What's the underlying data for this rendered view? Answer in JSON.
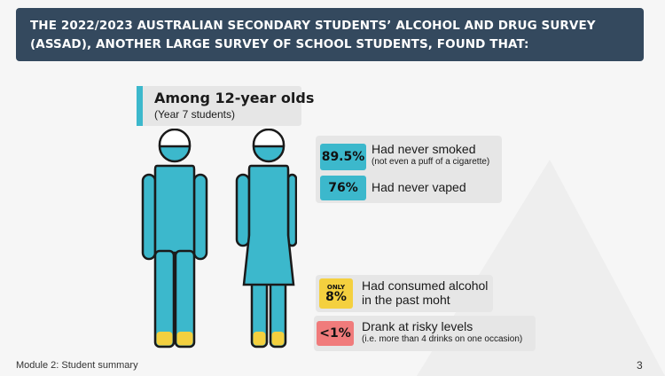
{
  "banner": {
    "line1": "THE 2022/2023 AUSTRALIAN SECONDARY STUDENTS’ ALCOHOL AND DRUG SURVEY",
    "line2": "(ASSAD), ANOTHER LARGE SURVEY OF SCHOOL STUDENTS, FOUND THAT:"
  },
  "heading": {
    "main": "Among 12-year olds",
    "sub": "(Year 7 students)"
  },
  "stats": [
    {
      "value": "89.5%",
      "label": "Had never smoked",
      "note": "(not even a puff of a cigarette)"
    },
    {
      "value": "76%",
      "label": "Had never vaped"
    },
    {
      "value_prefix": "ONLY",
      "value": "8%",
      "label_line1": "Had consumed alcohol",
      "label_line2": "in the past moht"
    },
    {
      "value": "<1%",
      "label": "Drank at risky levels",
      "note": "(i.e. more than 4 drinks on one occasion)"
    }
  ],
  "colors": {
    "banner": "#34495e",
    "teal": "#3cb8cc",
    "yellow": "#f4d03f",
    "red": "#f07b7b",
    "card": "#e6e6e6"
  },
  "footer": {
    "module": "Module 2: Student summary",
    "page": "3"
  }
}
